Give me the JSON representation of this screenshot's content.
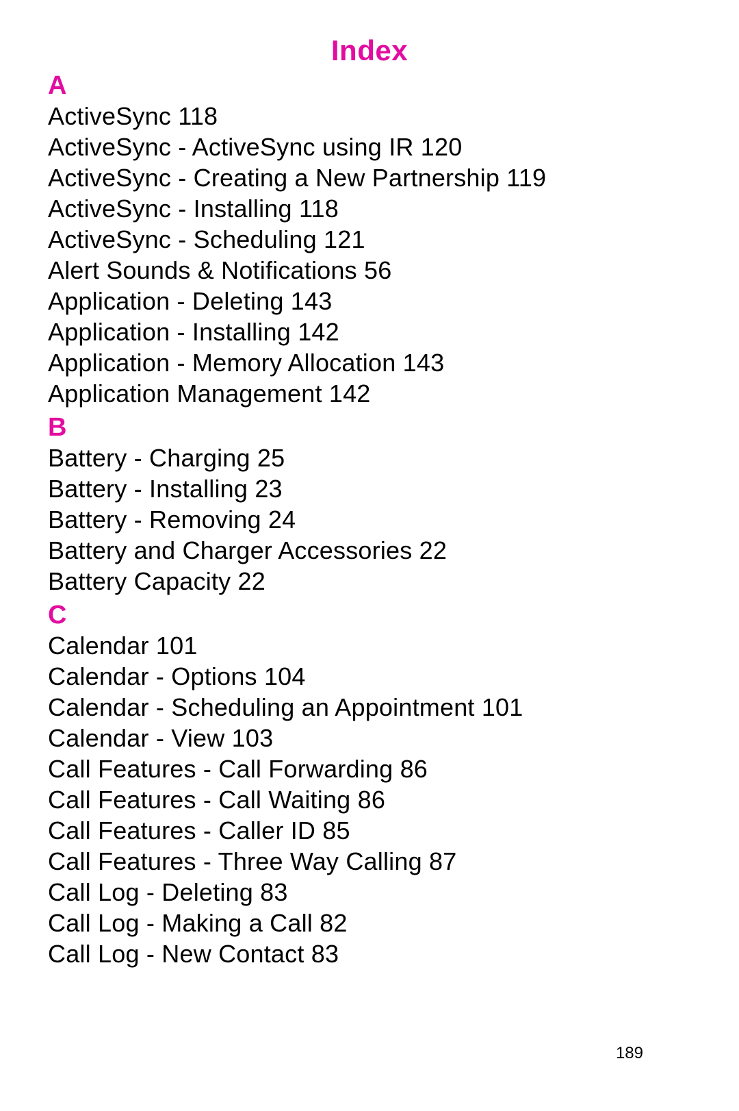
{
  "colors": {
    "accent": "#e20da0",
    "text": "#000000",
    "background": "#ffffff"
  },
  "title": "Index",
  "pageNumber": "189",
  "sections": [
    {
      "letter": "A",
      "entries": [
        "ActiveSync 118",
        "ActiveSync - ActiveSync using IR 120",
        "ActiveSync - Creating a New Partnership 119",
        "ActiveSync - Installing 118",
        "ActiveSync - Scheduling 121",
        "Alert Sounds & Notifications 56",
        "Application - Deleting 143",
        "Application - Installing 142",
        "Application - Memory Allocation 143",
        "Application Management 142"
      ]
    },
    {
      "letter": "B",
      "entries": [
        "Battery - Charging 25",
        "Battery - Installing 23",
        "Battery - Removing 24",
        "Battery and Charger Accessories 22",
        "Battery Capacity 22"
      ]
    },
    {
      "letter": "C",
      "entries": [
        "Calendar 101",
        "Calendar - Options 104",
        "Calendar - Scheduling an Appointment 101",
        "Calendar - View 103",
        "Call Features - Call Forwarding 86",
        "Call Features - Call Waiting 86",
        "Call Features - Caller ID 85",
        "Call Features - Three Way Calling 87",
        "Call Log - Deleting 83",
        "Call Log - Making a Call 82",
        "Call Log - New Contact 83"
      ]
    }
  ]
}
